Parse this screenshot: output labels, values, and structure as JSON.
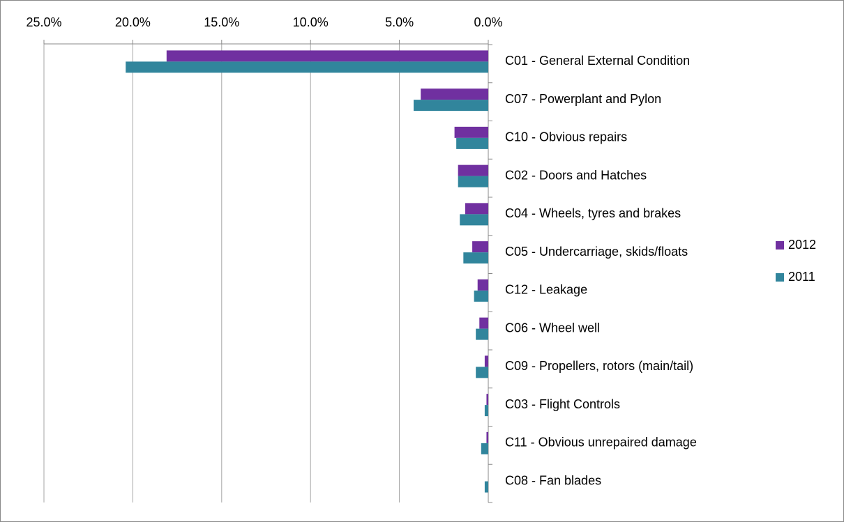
{
  "chart_data": {
    "type": "hbar",
    "categories": [
      "C01 - General External Condition",
      "C07 - Powerplant and Pylon",
      "C10 - Obvious repairs",
      "C02 - Doors and Hatches",
      "C04 - Wheels, tyres and brakes",
      "C05 - Undercarriage, skids/floats",
      "C12 - Leakage",
      "C06 - Wheel well",
      "C09 - Propellers, rotors (main/tail)",
      "C03 - Flight Controls",
      "C11 - Obvious unrepaired damage",
      "C08 - Fan blades"
    ],
    "series": [
      {
        "name": "2012",
        "color": "#7030a0",
        "values": [
          18.1,
          3.8,
          1.9,
          1.7,
          1.3,
          0.9,
          0.6,
          0.5,
          0.2,
          0.1,
          0.1,
          0
        ]
      },
      {
        "name": "2011",
        "color": "#31859c",
        "values": [
          20.4,
          4.2,
          1.8,
          1.7,
          1.6,
          1.4,
          0.8,
          0.7,
          0.7,
          0.2,
          0.4,
          0.2
        ]
      }
    ],
    "xlim": [
      0,
      25
    ],
    "xticks": [
      {
        "value": 25,
        "label": "25.0%"
      },
      {
        "value": 20,
        "label": "20.0%"
      },
      {
        "value": 15,
        "label": "15.0%"
      },
      {
        "value": 10,
        "label": "10.0%"
      },
      {
        "value": 5,
        "label": "5.0%"
      },
      {
        "value": 0,
        "label": "0.0%"
      }
    ],
    "x_reversed": true,
    "grid": true,
    "legend": "right"
  }
}
